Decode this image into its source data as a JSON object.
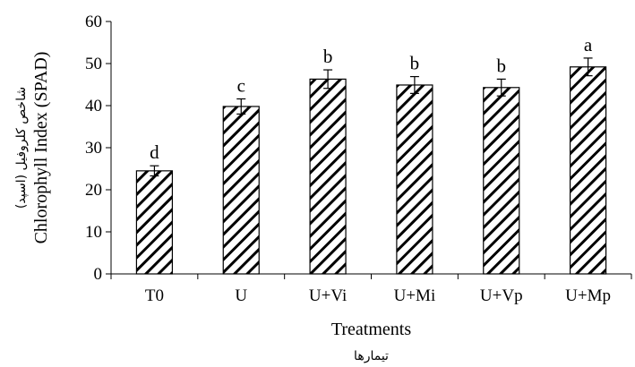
{
  "chart_data": {
    "type": "bar",
    "categories": [
      "T0",
      "U",
      "U+Vi",
      "U+Mi",
      "U+Vp",
      "U+Mp"
    ],
    "values": [
      24.5,
      39.8,
      46.3,
      44.9,
      44.3,
      49.2
    ],
    "errors": [
      1.2,
      1.8,
      2.2,
      2.0,
      2.0,
      2.1
    ],
    "significance_letters": [
      "d",
      "c",
      "b",
      "b",
      "b",
      "a"
    ],
    "xlabel": "Treatments",
    "xlabel_fa": "تیمارها",
    "ylabel": "Chlorophyll Index (SPAD)",
    "ylabel_fa": "شاخص کلروفیل (اسپد)",
    "ylim": [
      0,
      60
    ],
    "yticks": [
      0,
      10,
      20,
      30,
      40,
      50,
      60
    ],
    "grid": false,
    "bar_fill": "diagonal-hatch",
    "bar_colors": {
      "fill": "#ffffff",
      "hatch": "#000000",
      "edge": "#000000"
    }
  }
}
